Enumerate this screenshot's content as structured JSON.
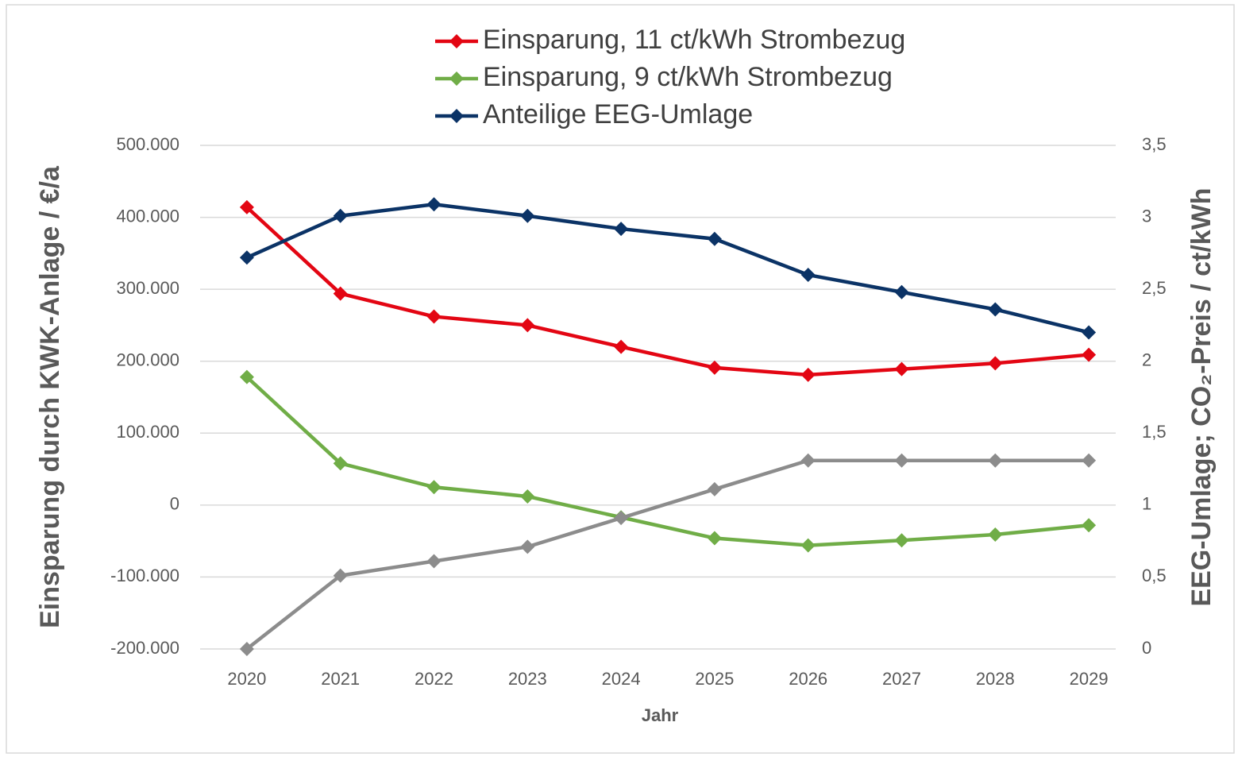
{
  "chart_data": {
    "type": "line",
    "x_label": "Jahr",
    "y_label": "Einsparung durch KWK-Anlage / €/a",
    "y2_label": "EEG-Umlage; CO₂-Preis / ct/kWh",
    "categories": [
      "2020",
      "2021",
      "2022",
      "2023",
      "2024",
      "2025",
      "2026",
      "2027",
      "2028",
      "2029"
    ],
    "ylim": [
      -200000,
      500000
    ],
    "yticks": [
      {
        "value": -200000,
        "label": "-200.000"
      },
      {
        "value": -100000,
        "label": "-100.000"
      },
      0,
      {
        "value": 100000,
        "label": "100.000"
      },
      {
        "value": 200000,
        "label": "200.000"
      },
      {
        "value": 300000,
        "label": "300.000"
      },
      {
        "value": 400000,
        "label": "400.000"
      },
      {
        "value": 500000,
        "label": "500.000"
      }
    ],
    "y2lim": [
      0,
      3.5
    ],
    "y2ticks": [
      0,
      {
        "value": 0.5,
        "label": "0,5"
      },
      1,
      {
        "value": 1.5,
        "label": "1,5"
      },
      2,
      {
        "value": 2.5,
        "label": "2,5"
      },
      3,
      {
        "value": 3.5,
        "label": "3,5"
      }
    ],
    "grid": true,
    "legend": "top",
    "series": [
      {
        "name": "Einsparung, 11 ct/kWh Strombezug",
        "color": "#e30613",
        "values": [
          414000,
          294000,
          262000,
          250000,
          220000,
          191000,
          181000,
          189000,
          197000,
          209000
        ]
      },
      {
        "name": "Einsparung, 9 ct/kWh Strombezug",
        "color": "#70ad47",
        "values": [
          178000,
          58000,
          25000,
          12000,
          -17000,
          -46000,
          -56000,
          -49000,
          -41000,
          -28000
        ]
      },
      {
        "name": "Anteilige EEG-Umlage",
        "color": "#0b3366",
        "axis": "y2",
        "values": [
          2.72,
          3.01,
          3.09,
          3.01,
          2.92,
          2.85,
          2.6,
          2.48,
          2.36,
          2.2
        ]
      },
      {
        "color": "#8c8c8c",
        "axis": "y2",
        "values": [
          0,
          0.51,
          0.61,
          0.71,
          0.91,
          1.11,
          1.31,
          1.31,
          1.31,
          1.31
        ]
      }
    ]
  }
}
